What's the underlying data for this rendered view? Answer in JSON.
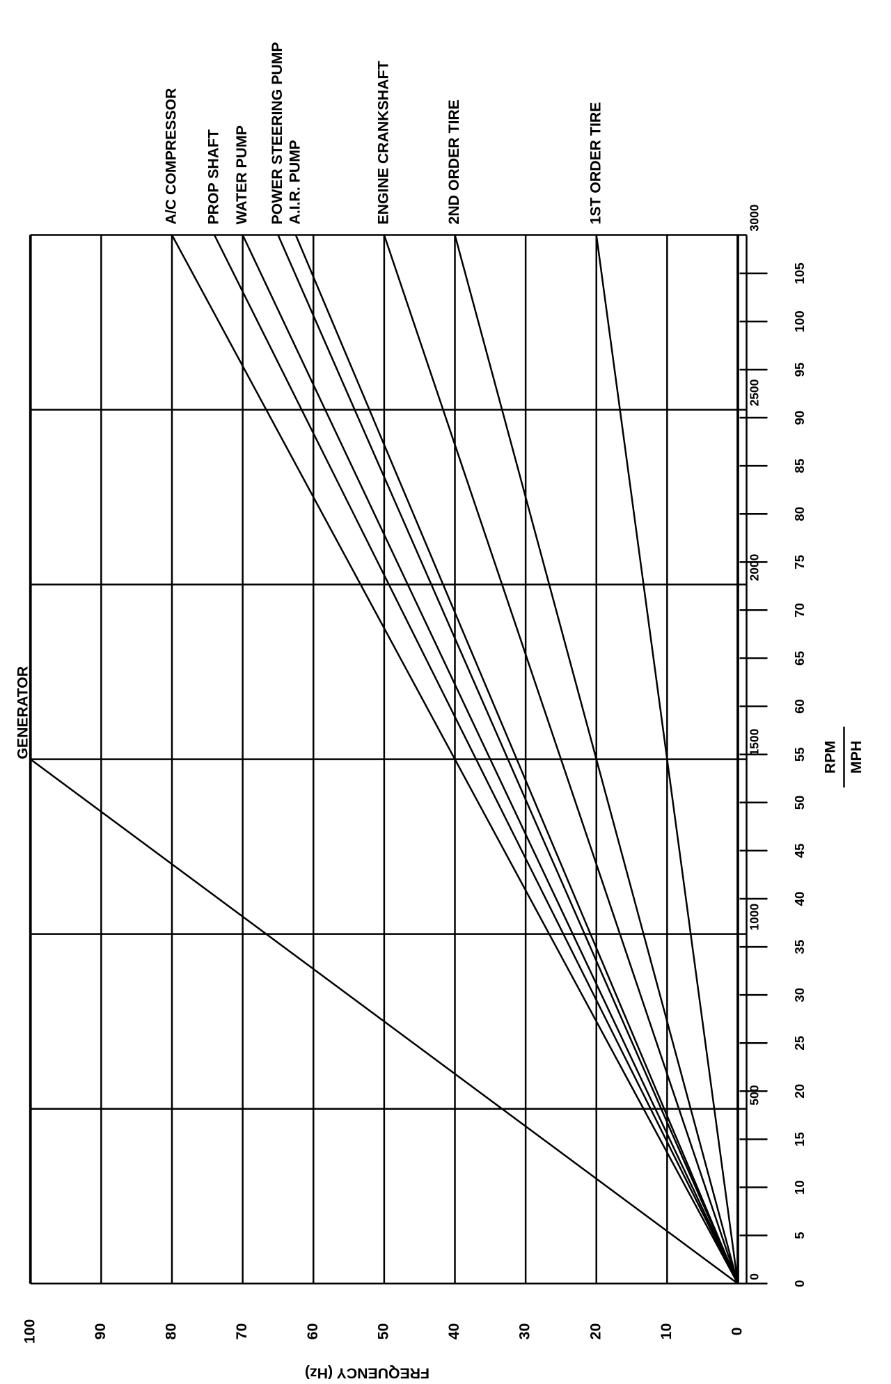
{
  "chart_data": {
    "type": "line",
    "y_axis_label": "FREQUENCY (Hz)",
    "x_axis_label": "RPM",
    "x2_axis_label": "MPH",
    "xlim": [
      0,
      3000
    ],
    "xticks": [
      0,
      500,
      1000,
      1500,
      2000,
      2500,
      3000
    ],
    "x2lim": [
      0,
      109
    ],
    "x2ticks": [
      0,
      5,
      10,
      15,
      20,
      25,
      30,
      35,
      40,
      45,
      50,
      55,
      60,
      65,
      70,
      75,
      80,
      85,
      90,
      95,
      100,
      105
    ],
    "ylim": [
      0,
      100
    ],
    "yticks": [
      0,
      10,
      20,
      30,
      40,
      50,
      60,
      70,
      80,
      90,
      100
    ],
    "grid": true,
    "series": [
      {
        "name": "GENERATOR",
        "color": "#000000",
        "x": [
          0,
          1500
        ],
        "values": [
          0,
          100
        ]
      },
      {
        "name": "A/C COMPRESSOR",
        "color": "#000000",
        "x": [
          0,
          3000
        ],
        "values": [
          0,
          80
        ]
      },
      {
        "name": "PROP SHAFT",
        "color": "#000000",
        "x": [
          0,
          3000
        ],
        "values": [
          0,
          74
        ]
      },
      {
        "name": "WATER PUMP",
        "color": "#000000",
        "x": [
          0,
          3000
        ],
        "values": [
          0,
          70
        ]
      },
      {
        "name": "POWER STEERING PUMP",
        "color": "#000000",
        "x": [
          0,
          3000
        ],
        "values": [
          0,
          65
        ]
      },
      {
        "name": "A.I.R. PUMP",
        "color": "#000000",
        "x": [
          0,
          3000
        ],
        "values": [
          0,
          62.5
        ]
      },
      {
        "name": "ENGINE CRANKSHAFT",
        "color": "#000000",
        "x": [
          0,
          3000
        ],
        "values": [
          0,
          50
        ]
      },
      {
        "name": "2ND ORDER TIRE",
        "color": "#000000",
        "x": [
          0,
          3000
        ],
        "values": [
          0,
          40
        ]
      },
      {
        "name": "1ST ORDER TIRE",
        "color": "#000000",
        "x": [
          0,
          3000
        ],
        "values": [
          0,
          20
        ]
      }
    ]
  }
}
